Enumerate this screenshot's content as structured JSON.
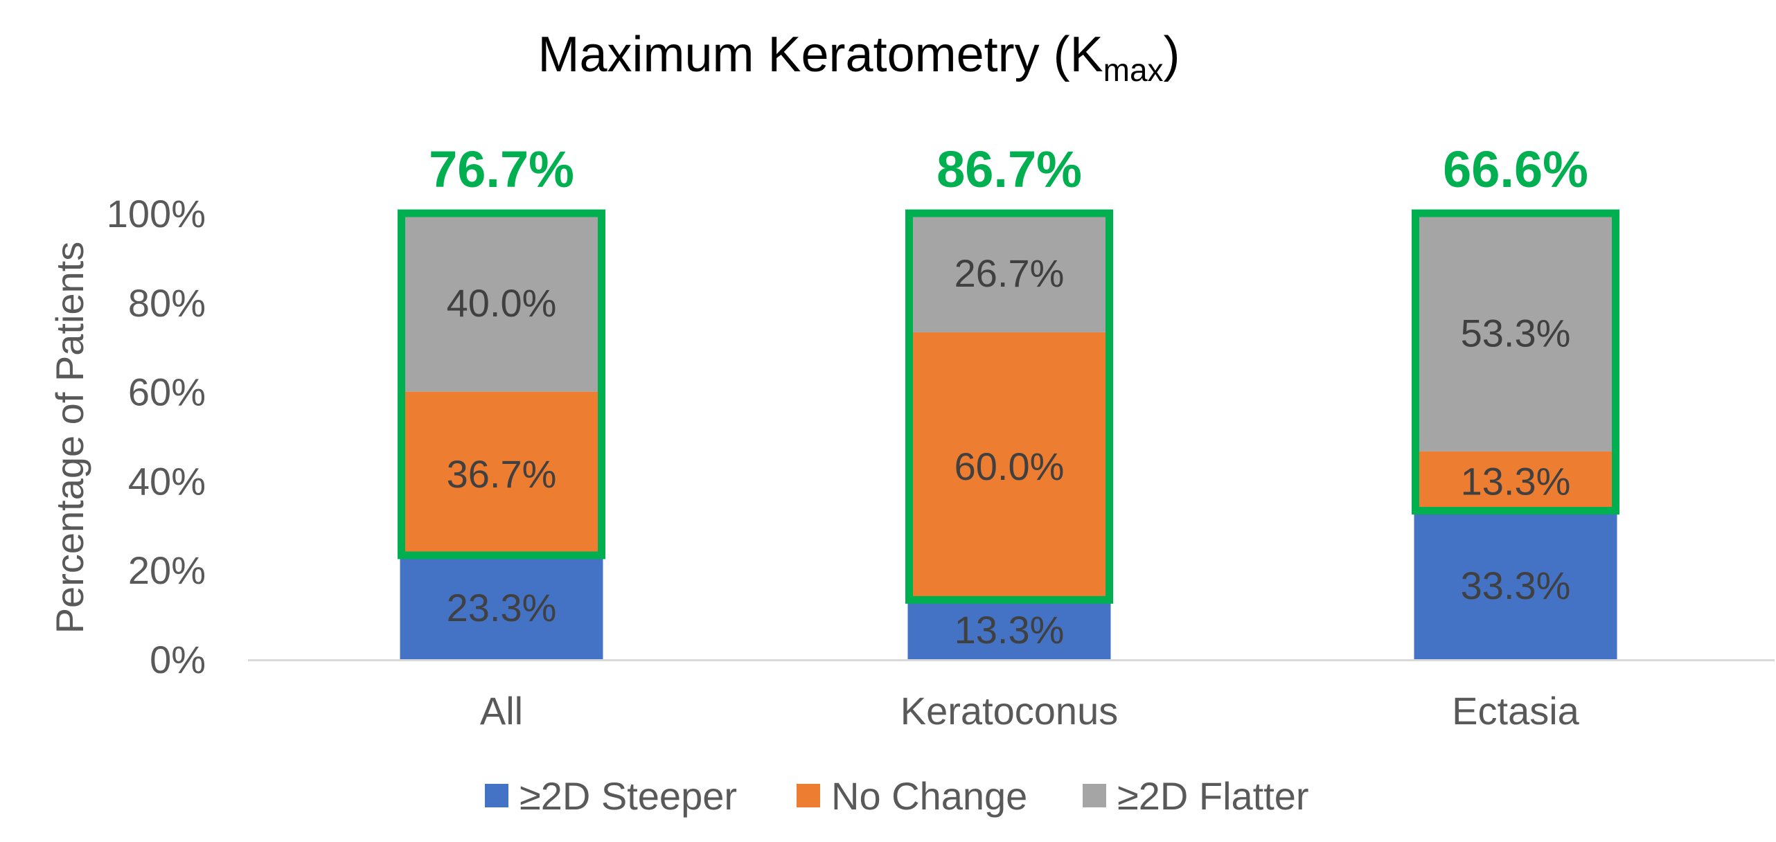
{
  "chart_data": {
    "type": "bar",
    "stacked": true,
    "title": {
      "main": "Maximum Keratometry (K",
      "subscript": "max",
      "close": ")"
    },
    "xlabel": "",
    "ylabel": "Percentage of Patients",
    "ylim": [
      0,
      100
    ],
    "yticks": [
      "0%",
      "20%",
      "40%",
      "60%",
      "80%",
      "100%"
    ],
    "categories": [
      "All",
      "Keratoconus",
      "Ectasia"
    ],
    "series": [
      {
        "name": "≥2D Steeper",
        "color": "#4472C4",
        "values": [
          23.3,
          13.3,
          33.3
        ],
        "labels": [
          "23.3%",
          "13.3%",
          "33.3%"
        ]
      },
      {
        "name": "No Change",
        "color": "#ED7D31",
        "values": [
          36.7,
          60.0,
          13.3
        ],
        "labels": [
          "36.7%",
          "60.0%",
          "13.3%"
        ]
      },
      {
        "name": "≥2D Flatter",
        "color": "#A5A5A5",
        "values": [
          40.0,
          26.7,
          53.3
        ],
        "labels": [
          "40.0%",
          "26.7%",
          "53.3%"
        ]
      }
    ],
    "highlight": {
      "color": "#00B050",
      "labels": [
        "76.7%",
        "86.7%",
        "66.6%"
      ],
      "ranges": [
        [
          23.3,
          100.0
        ],
        [
          13.3,
          100.0
        ],
        [
          33.3,
          100.0
        ]
      ]
    },
    "legend_position": "bottom"
  }
}
